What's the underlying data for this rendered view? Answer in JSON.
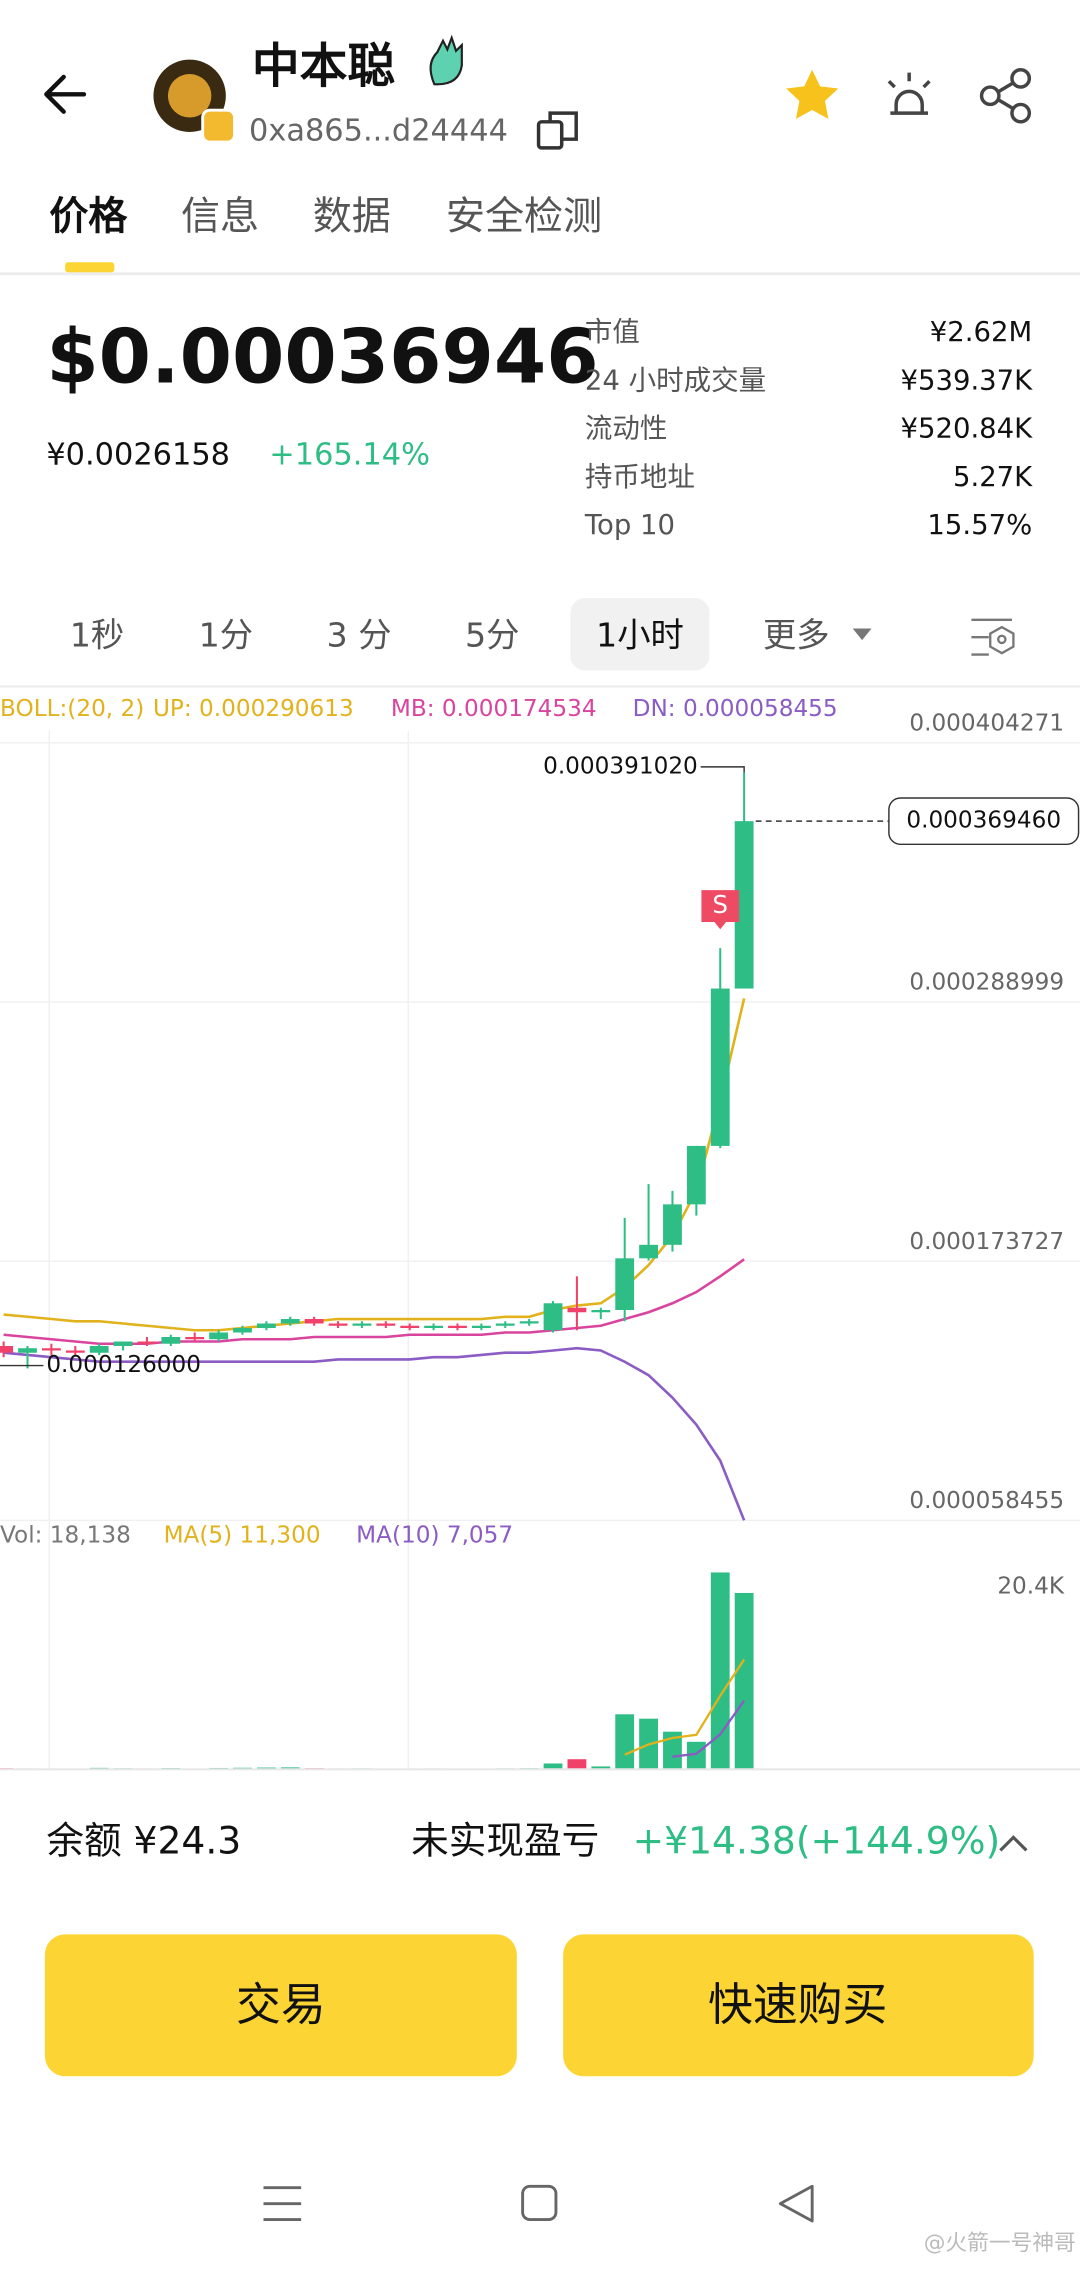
{
  "header": {
    "name": "中本聪",
    "address": "0xa865...d24444"
  },
  "tabs": [
    "价格",
    "信息",
    "数据",
    "安全检测"
  ],
  "active_tab": 0,
  "price": {
    "usd": "$0.00036946",
    "cny": "¥0.0026158",
    "change": "+165.14%"
  },
  "stats": [
    {
      "label": "市值",
      "value": "¥2.62M"
    },
    {
      "label": "24 小时成交量",
      "value": "¥539.37K"
    },
    {
      "label": "流动性",
      "value": "¥520.84K"
    },
    {
      "label": "持币地址",
      "value": "5.27K"
    },
    {
      "label": "Top 10",
      "value": "15.57%"
    }
  ],
  "intervals": [
    "1秒",
    "1分",
    "3 分",
    "5分",
    "1小时",
    "更多"
  ],
  "active_interval": 4,
  "chart_data": {
    "type": "candlestick",
    "up_color": "#2ebd85",
    "down_color": "#f0416a",
    "indicator": "BOLL:(20, 2)",
    "ylim": [
      5.8455e-05,
      0.000404271
    ],
    "yticks": [
      0.000404271,
      0.000288999,
      0.000173727,
      5.8455e-05
    ],
    "open": [
      0.000136,
      0.000133,
      0.000135,
      0.000134,
      0.000133,
      0.000136,
      0.000138,
      0.000137,
      0.00014,
      0.000139,
      0.000142,
      0.000144,
      0.000146,
      0.000148,
      0.000146,
      0.000145,
      0.000146,
      0.000145,
      0.000144,
      0.000145,
      0.000144,
      0.000145,
      0.000146,
      0.000143,
      0.000153,
      0.000151,
      0.000152,
      0.000175,
      0.000181,
      0.000199,
      0.000225,
      0.000295
    ],
    "high": [
      0.000138,
      0.000136,
      0.000137,
      0.000136,
      0.000137,
      0.000138,
      0.00014,
      0.000141,
      0.000142,
      0.000143,
      0.000145,
      0.000147,
      0.000149,
      0.000149,
      0.000147,
      0.000147,
      0.000147,
      0.000146,
      0.000146,
      0.000146,
      0.000146,
      0.000147,
      0.000148,
      0.000156,
      0.000167,
      0.000153,
      0.000193,
      0.000208,
      0.000205,
      0.000225,
      0.000313,
      0.00039102
    ],
    "low": [
      0.000131,
      0.000126,
      0.000132,
      0.000132,
      0.000132,
      0.000134,
      0.000136,
      0.000136,
      0.000138,
      0.000138,
      0.000141,
      0.000143,
      0.000145,
      0.000145,
      0.000144,
      0.000144,
      0.000144,
      0.000143,
      0.000143,
      0.000143,
      0.000143,
      0.000144,
      0.000145,
      0.000142,
      0.000143,
      0.000148,
      0.000147,
      0.000174,
      0.000178,
      0.000194,
      0.000224,
      0.000295
    ],
    "close": [
      0.000133,
      0.000135,
      0.000134,
      0.000133,
      0.000136,
      0.000138,
      0.000137,
      0.00014,
      0.000139,
      0.000142,
      0.000144,
      0.000146,
      0.000148,
      0.000146,
      0.000145,
      0.000146,
      0.000145,
      0.000144,
      0.000145,
      0.000144,
      0.000145,
      0.000146,
      0.000147,
      0.000155,
      0.000151,
      0.000152,
      0.000175,
      0.000181,
      0.000199,
      0.000225,
      0.000295,
      0.00036946
    ],
    "series": [
      {
        "name": "UP: 0.000290613",
        "color": "#e2b21c",
        "values": [
          0.00015,
          0.000149,
          0.000148,
          0.000147,
          0.000147,
          0.000146,
          0.000145,
          0.000144,
          0.000143,
          0.000143,
          0.000144,
          0.000145,
          0.000146,
          0.000147,
          0.000148,
          0.000148,
          0.000148,
          0.000148,
          0.000148,
          0.000148,
          0.000148,
          0.000149,
          0.000149,
          0.000152,
          0.000154,
          0.000155,
          0.000162,
          0.000172,
          0.000185,
          0.000205,
          0.000245,
          0.000290613
        ]
      },
      {
        "name": "MB: 0.000174534",
        "color": "#d9449e",
        "values": [
          0.000141,
          0.00014,
          0.000139,
          0.000138,
          0.000137,
          0.000137,
          0.000137,
          0.000138,
          0.000138,
          0.000138,
          0.000139,
          0.000139,
          0.000139,
          0.00014,
          0.00014,
          0.00014,
          0.00014,
          0.000141,
          0.000141,
          0.000141,
          0.000141,
          0.000142,
          0.000142,
          0.000143,
          0.000144,
          0.000145,
          0.000148,
          0.000151,
          0.000155,
          0.00016,
          0.000167,
          0.000174534
        ]
      },
      {
        "name": "DN: 0.000058455",
        "color": "#8b5cc4",
        "values": [
          0.000133,
          0.000132,
          0.000131,
          0.00013,
          0.000129,
          0.000129,
          0.000129,
          0.000129,
          0.000129,
          0.000129,
          0.000129,
          0.000129,
          0.000129,
          0.000129,
          0.00013,
          0.00013,
          0.00013,
          0.00013,
          0.000131,
          0.000131,
          0.000132,
          0.000133,
          0.000133,
          0.000134,
          0.000135,
          0.000134,
          0.000129,
          0.000123,
          0.000113,
          0.000101,
          8.5e-05,
          5.8455e-05
        ]
      }
    ],
    "high_label": {
      "value": 0.00039102,
      "label": "0.000391020"
    },
    "last_label": {
      "value": 0.00036946,
      "label": "0.000369460"
    },
    "low_label": {
      "value": 0.000126,
      "label": "0.000126000"
    },
    "signal": {
      "label": "S",
      "index": 30
    },
    "volume": {
      "ylim": [
        0,
        20400
      ],
      "yticks": [
        {
          "value": 20400,
          "label": "20.4K"
        }
      ],
      "name": "Vol: 18,138",
      "values": [
        120,
        90,
        80,
        70,
        150,
        110,
        90,
        130,
        80,
        140,
        160,
        180,
        200,
        120,
        90,
        100,
        80,
        70,
        90,
        60,
        80,
        100,
        120,
        600,
        1040,
        300,
        5660,
        5210,
        3870,
        2830,
        20250,
        18138
      ],
      "series": [
        {
          "name": "MA(5) 11,300",
          "color": "#e2b21c",
          "values": [
            null,
            null,
            null,
            null,
            null,
            null,
            null,
            null,
            null,
            null,
            null,
            null,
            null,
            null,
            null,
            null,
            null,
            null,
            null,
            null,
            null,
            null,
            null,
            null,
            null,
            null,
            1500,
            2560,
            3220,
            3550,
            7564,
            11300
          ]
        },
        {
          "name": "MA(10) 7,057",
          "color": "#8b5cc4",
          "values": [
            null,
            null,
            null,
            null,
            null,
            null,
            null,
            null,
            null,
            null,
            null,
            null,
            null,
            null,
            null,
            null,
            null,
            null,
            null,
            null,
            null,
            null,
            null,
            null,
            null,
            null,
            null,
            null,
            1300,
            1600,
            3600,
            7057
          ]
        }
      ]
    }
  },
  "footer": {
    "balance": "余额 ¥24.3",
    "pnl_label": "未实现盈亏",
    "pnl_value": "+¥14.38(+144.9%)",
    "buttons": [
      "交易",
      "快速购买"
    ]
  },
  "watermark": "@火箭一号神哥"
}
